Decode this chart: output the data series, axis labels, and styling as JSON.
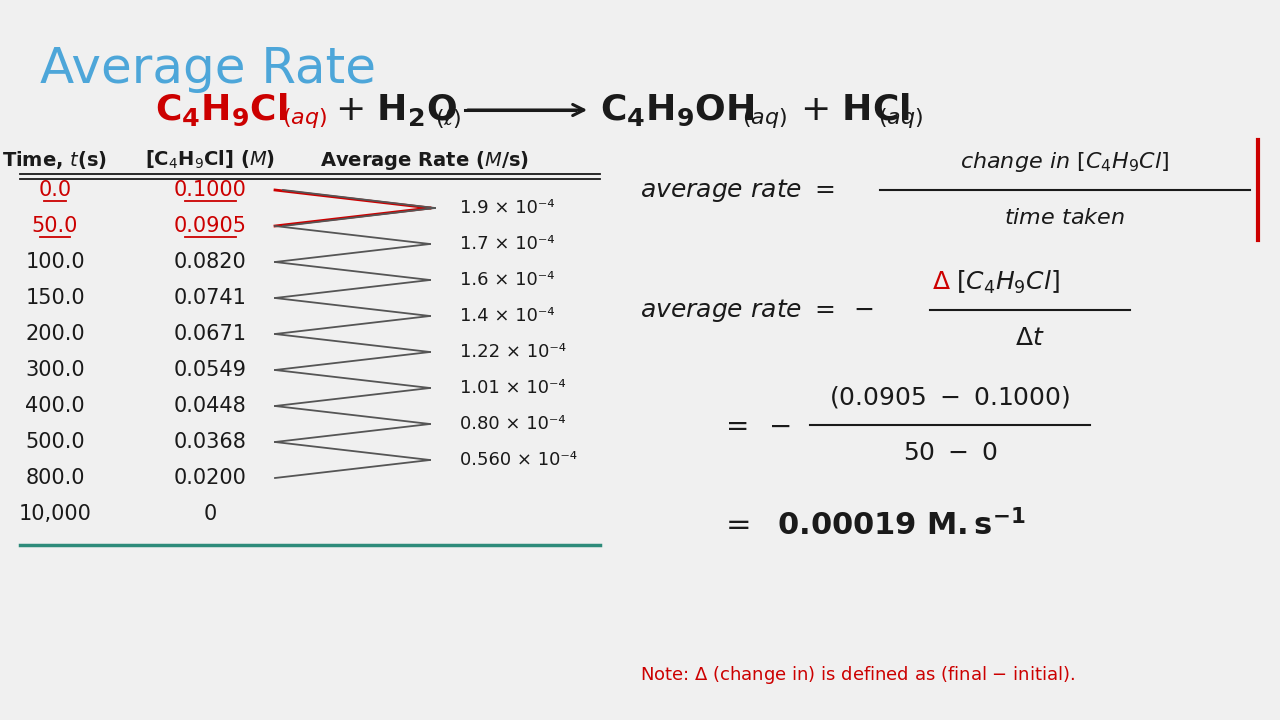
{
  "title": "Average Rate",
  "title_color": "#4da6d9",
  "bg_color": "#f0f0f0",
  "red_color": "#cc0000",
  "dark_color": "#1a1a1a",
  "teal_color": "#2e8b7a",
  "header_line_color": "#555555",
  "times": [
    "0.0",
    "50.0",
    "100.0",
    "150.0",
    "200.0",
    "300.0",
    "400.0",
    "500.0",
    "800.0",
    "10,000"
  ],
  "concentrations": [
    "0.1000",
    "0.0905",
    "0.0820",
    "0.0741",
    "0.0671",
    "0.0549",
    "0.0448",
    "0.0368",
    "0.0200",
    "0"
  ],
  "rates": [
    "1.9 × 10⁻⁴",
    "1.7 × 10⁻⁴",
    "1.6 × 10⁻⁴",
    "1.4 × 10⁻⁴",
    "1.22 × 10⁻⁴",
    "1.01 × 10⁻⁴",
    "0.80 × 10⁻⁴",
    "0.560 × 10⁻⁴"
  ],
  "underlined_rows": [
    0,
    1
  ]
}
